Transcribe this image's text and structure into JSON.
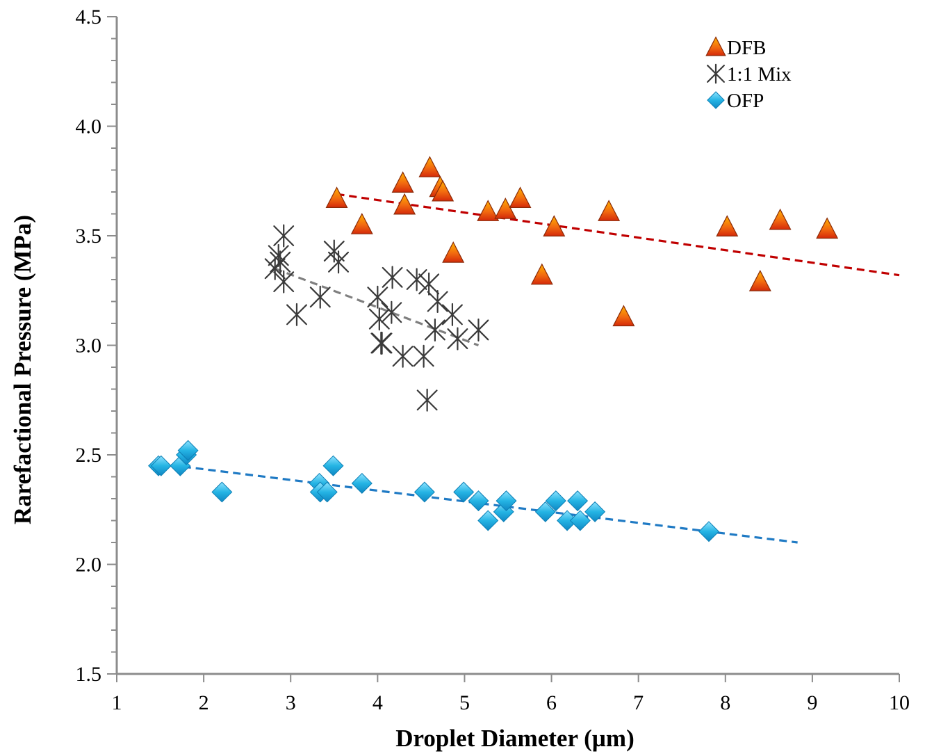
{
  "chart_data": {
    "type": "scatter",
    "xlabel": "Droplet Diameter (µm)",
    "ylabel": "Rarefactional Pressure (MPa)",
    "xlim": [
      1,
      10
    ],
    "ylim": [
      1.5,
      4.5
    ],
    "x_ticks": [
      "1",
      "2",
      "3",
      "4",
      "5",
      "6",
      "7",
      "8",
      "9",
      "10"
    ],
    "y_ticks": [
      "1.5",
      "2.0",
      "2.5",
      "3.0",
      "3.5",
      "4.0",
      "4.5"
    ],
    "grid": false,
    "legend_position": "top-right",
    "series": [
      {
        "name": "DFB",
        "marker": "triangle",
        "color": "#e8450a",
        "x": [
          3.53,
          3.82,
          4.29,
          4.31,
          4.6,
          4.72,
          4.75,
          4.87,
          5.27,
          5.47,
          5.64,
          5.89,
          6.03,
          6.66,
          6.83,
          8.02,
          8.4,
          8.63,
          9.17
        ],
        "y": [
          3.67,
          3.55,
          3.74,
          3.64,
          3.81,
          3.72,
          3.7,
          3.42,
          3.61,
          3.62,
          3.67,
          3.32,
          3.54,
          3.61,
          3.13,
          3.54,
          3.29,
          3.57,
          3.53
        ],
        "trendline": {
          "x": [
            3.53,
            10
          ],
          "y": [
            3.69,
            3.32
          ],
          "color": "#c00000"
        }
      },
      {
        "name": "1:1 Mix",
        "marker": "star",
        "color": "#404040",
        "x": [
          2.82,
          2.86,
          2.88,
          2.92,
          2.92,
          3.07,
          3.34,
          3.5,
          3.55,
          4.0,
          4.02,
          4.04,
          4.05,
          4.16,
          4.17,
          4.29,
          4.45,
          4.53,
          4.57,
          4.59,
          4.66,
          4.69,
          4.86,
          4.92,
          5.16
        ],
        "y": [
          3.35,
          3.41,
          3.38,
          3.5,
          3.29,
          3.14,
          3.22,
          3.43,
          3.38,
          3.22,
          3.12,
          3.01,
          3.01,
          3.15,
          3.31,
          2.95,
          3.3,
          2.95,
          2.75,
          3.28,
          3.07,
          3.2,
          3.14,
          3.03,
          3.07
        ],
        "trendline": {
          "x": [
            2.82,
            5.16
          ],
          "y": [
            3.35,
            3.0
          ],
          "color": "#7f7f7f"
        }
      },
      {
        "name": "OFP",
        "marker": "diamond",
        "color": "#1fa7d9",
        "x": [
          1.48,
          1.51,
          1.73,
          1.8,
          1.82,
          2.21,
          3.33,
          3.34,
          3.42,
          3.49,
          3.82,
          4.54,
          4.99,
          5.16,
          5.27,
          5.45,
          5.48,
          5.93,
          6.05,
          6.18,
          6.3,
          6.33,
          6.5,
          7.81
        ],
        "y": [
          2.45,
          2.45,
          2.45,
          2.5,
          2.52,
          2.33,
          2.37,
          2.33,
          2.33,
          2.45,
          2.37,
          2.33,
          2.33,
          2.29,
          2.2,
          2.24,
          2.29,
          2.24,
          2.29,
          2.2,
          2.29,
          2.2,
          2.24,
          2.15
        ],
        "trendline": {
          "x": [
            1.48,
            8.83
          ],
          "y": [
            2.46,
            2.1
          ],
          "color": "#1f7ac4"
        }
      }
    ]
  }
}
